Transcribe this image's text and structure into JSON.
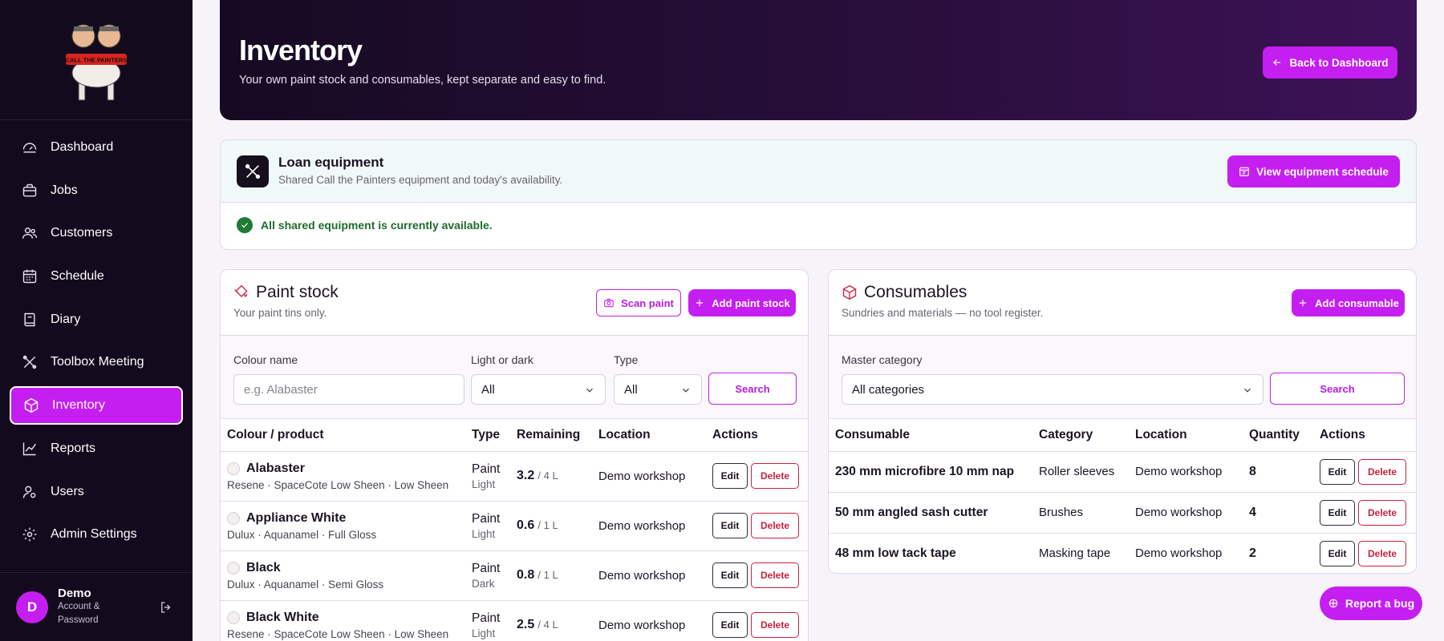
{
  "brand": {
    "logo_text": "CALL THE PAINTERS",
    "accent": "#c41ff0"
  },
  "sidebar": {
    "items": [
      {
        "label": "Dashboard",
        "icon": "dashboard-icon"
      },
      {
        "label": "Jobs",
        "icon": "briefcase-icon"
      },
      {
        "label": "Customers",
        "icon": "users-icon"
      },
      {
        "label": "Schedule",
        "icon": "calendar-icon"
      },
      {
        "label": "Diary",
        "icon": "book-icon"
      },
      {
        "label": "Toolbox Meeting",
        "icon": "tools-icon"
      },
      {
        "label": "Inventory",
        "icon": "box-icon",
        "active": true
      },
      {
        "label": "Reports",
        "icon": "chart-icon"
      },
      {
        "label": "Users",
        "icon": "user-icon"
      },
      {
        "label": "Admin Settings",
        "icon": "gear-icon"
      }
    ],
    "user": {
      "initial": "D",
      "name": "Demo",
      "sub": "Account & Password"
    }
  },
  "hero": {
    "title": "Inventory",
    "subtitle": "Your own paint stock and consumables, kept separate and easy to find.",
    "back_label": "Back to Dashboard"
  },
  "loan": {
    "title": "Loan equipment",
    "subtitle": "Shared Call the Painters equipment and today's availability.",
    "schedule_label": "View equipment schedule",
    "status": "All shared equipment is currently available."
  },
  "paint": {
    "title": "Paint stock",
    "subtitle": "Your paint tins only.",
    "scan_label": "Scan paint",
    "add_label": "Add paint stock",
    "filters": {
      "colour_label": "Colour name",
      "colour_placeholder": "e.g. Alabaster",
      "light_label": "Light or dark",
      "light_value": "All",
      "type_label": "Type",
      "type_value": "All",
      "search_label": "Search"
    },
    "columns": [
      "Colour / product",
      "Type",
      "Remaining",
      "Location",
      "Actions"
    ],
    "rows": [
      {
        "name": "Alabaster",
        "detail": "Resene · SpaceCote Low Sheen · Low Sheen",
        "type": "Paint",
        "tone": "Light",
        "remaining": "3.2",
        "capacity": "/ 4 L",
        "location": "Demo workshop"
      },
      {
        "name": "Appliance White",
        "detail": "Dulux · Aquanamel · Full Gloss",
        "type": "Paint",
        "tone": "Light",
        "remaining": "0.6",
        "capacity": "/ 1 L",
        "location": "Demo workshop"
      },
      {
        "name": "Black",
        "detail": "Dulux · Aquanamel · Semi Gloss",
        "type": "Paint",
        "tone": "Dark",
        "remaining": "0.8",
        "capacity": "/ 1 L",
        "location": "Demo workshop"
      },
      {
        "name": "Black White",
        "detail": "Resene · SpaceCote Low Sheen · Low Sheen",
        "type": "Paint",
        "tone": "Light",
        "remaining": "2.5",
        "capacity": "/ 4 L",
        "location": "Demo workshop"
      }
    ],
    "edit_label": "Edit",
    "delete_label": "Delete"
  },
  "consumables": {
    "title": "Consumables",
    "subtitle": "Sundries and materials — no tool register.",
    "add_label": "Add consumable",
    "filter_label": "Master category",
    "filter_value": "All categories",
    "search_label": "Search",
    "columns": [
      "Consumable",
      "Category",
      "Location",
      "Quantity",
      "Actions"
    ],
    "rows": [
      {
        "name": "230 mm microfibre 10 mm nap",
        "category": "Roller sleeves",
        "location": "Demo workshop",
        "qty": "8"
      },
      {
        "name": "50 mm angled sash cutter",
        "category": "Brushes",
        "location": "Demo workshop",
        "qty": "4"
      },
      {
        "name": "48 mm low tack tape",
        "category": "Masking tape",
        "location": "Demo workshop",
        "qty": "2"
      }
    ],
    "edit_label": "Edit",
    "delete_label": "Delete"
  },
  "bug_label": "Report a bug"
}
